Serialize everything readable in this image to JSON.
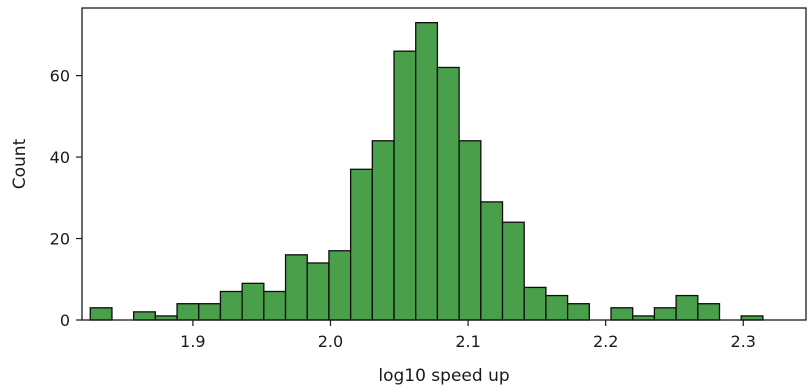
{
  "chart_data": {
    "type": "bar",
    "subtype": "histogram",
    "xlabel": "log10 speed up",
    "ylabel": "Count",
    "xlim": [
      1.8194,
      2.3456
    ],
    "ylim": [
      0,
      76.6
    ],
    "xticks": [
      {
        "value": 1.9,
        "label": "1.9"
      },
      {
        "value": 2.0,
        "label": "2.0"
      },
      {
        "value": 2.1,
        "label": "2.1"
      },
      {
        "value": 2.2,
        "label": "2.2"
      },
      {
        "value": 2.3,
        "label": "2.3"
      }
    ],
    "yticks": [
      {
        "value": 0,
        "label": "0"
      },
      {
        "value": 20,
        "label": "20"
      },
      {
        "value": 40,
        "label": "40"
      },
      {
        "value": 60,
        "label": "60"
      }
    ],
    "bins": {
      "start": 1.8254,
      "width": 0.01577
    },
    "values": [
      3,
      0,
      2,
      1,
      4,
      4,
      7,
      9,
      7,
      16,
      14,
      17,
      37,
      44,
      66,
      73,
      62,
      44,
      29,
      24,
      8,
      6,
      4,
      0,
      3,
      1,
      3,
      6,
      4,
      0,
      1
    ],
    "colors": {
      "bar_fill": "#4aa04a",
      "bar_edge": "#0d0d0d"
    },
    "grid": false,
    "legend": "none"
  }
}
